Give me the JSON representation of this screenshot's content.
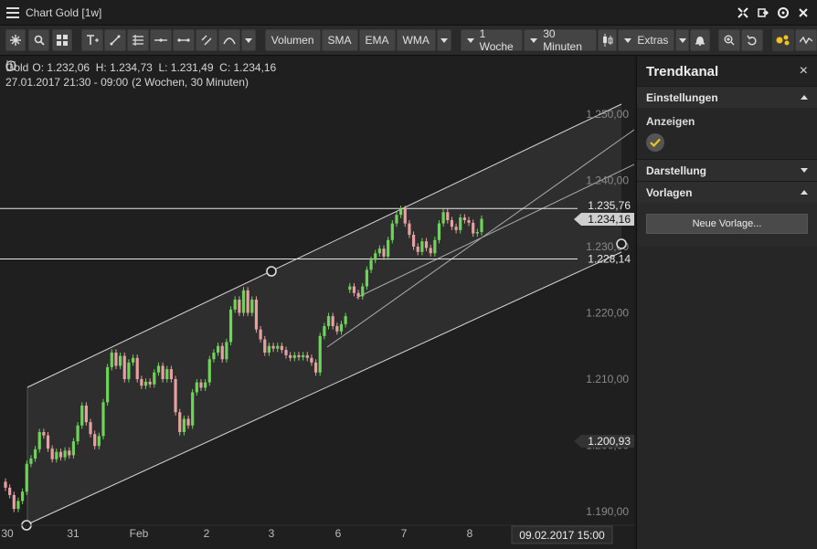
{
  "window": {
    "title": "Chart Gold [1w]"
  },
  "toolbar": {
    "volumen": "Volumen",
    "sma": "SMA",
    "ema": "EMA",
    "wma": "WMA",
    "period": "1 Woche",
    "interval": "30 Minuten",
    "extras": "Extras"
  },
  "legend": {
    "instrument": "Gold",
    "ohlc": "O: 1.232,06  H: 1.234,73  L: 1.231,49  C: 1.234,16",
    "time": "27.01.2017 21:30 - 09:00",
    "range": "(2 Wochen, 30 Minuten)"
  },
  "chart_data": {
    "type": "candlestick",
    "y_ticks": [
      "1.250,00",
      "1.240,00",
      "1.230,00",
      "1.220,00",
      "1.210,00",
      "1.200,00",
      "1.190,00"
    ],
    "x_ticks": [
      "30",
      "31",
      "Feb",
      "2",
      "3",
      "6",
      "7",
      "8"
    ],
    "price_labels": {
      "upper_line": "1.235,76",
      "current": "1.234,16",
      "lower_line": "1.228,14",
      "marker": "1.200,93"
    },
    "crosshair_time": "09.02.2017 15:00",
    "ylim": [
      1188,
      1252
    ],
    "horizontal_lines": [
      1235.76,
      1228.14
    ],
    "candles": [
      [
        1194.5,
        1193.6
      ],
      [
        1193.6,
        1192.5
      ],
      [
        1192.5,
        1190.4
      ],
      [
        1190.4,
        1191.6
      ],
      [
        1191.6,
        1193.0
      ],
      [
        1193.0,
        1197.2
      ],
      [
        1197.2,
        1198.0
      ],
      [
        1198.0,
        1199.4
      ],
      [
        1199.4,
        1202.0
      ],
      [
        1202.0,
        1201.5
      ],
      [
        1201.5,
        1199.5
      ],
      [
        1199.5,
        1197.9
      ],
      [
        1197.9,
        1199.0
      ],
      [
        1199.0,
        1198.2
      ],
      [
        1198.2,
        1199.2
      ],
      [
        1199.2,
        1198.5
      ],
      [
        1198.5,
        1200.6
      ],
      [
        1200.6,
        1203.0
      ],
      [
        1203.0,
        1206.0
      ],
      [
        1206.0,
        1203.5
      ],
      [
        1203.5,
        1201.7
      ],
      [
        1201.7,
        1199.9
      ],
      [
        1199.9,
        1201.4
      ],
      [
        1201.4,
        1206.5
      ],
      [
        1206.5,
        1211.8
      ],
      [
        1211.8,
        1214.0
      ],
      [
        1214.0,
        1212.0
      ],
      [
        1212.0,
        1213.5
      ],
      [
        1213.5,
        1210.0
      ],
      [
        1210.0,
        1212.5
      ],
      [
        1212.5,
        1213.2
      ],
      [
        1213.2,
        1210.0
      ],
      [
        1210.0,
        1209.0
      ],
      [
        1209.0,
        1209.6
      ],
      [
        1209.6,
        1209.2
      ],
      [
        1209.2,
        1211.0
      ],
      [
        1211.0,
        1212.0
      ],
      [
        1212.0,
        1210.0
      ],
      [
        1210.0,
        1211.5
      ],
      [
        1211.5,
        1210.0
      ],
      [
        1210.0,
        1205.0
      ],
      [
        1205.0,
        1202.0
      ],
      [
        1202.0,
        1204.0
      ],
      [
        1204.0,
        1203.0
      ],
      [
        1203.0,
        1208.0
      ],
      [
        1208.0,
        1209.5
      ],
      [
        1209.5,
        1208.7
      ],
      [
        1208.7,
        1209.5
      ],
      [
        1209.5,
        1213.0
      ],
      [
        1213.0,
        1214.0
      ],
      [
        1214.0,
        1215.0
      ],
      [
        1215.0,
        1213.0
      ],
      [
        1213.0,
        1215.6
      ],
      [
        1215.6,
        1220.5
      ],
      [
        1220.5,
        1222.0
      ],
      [
        1222.0,
        1220.0
      ],
      [
        1220.0,
        1223.4
      ],
      [
        1223.4,
        1220.0
      ],
      [
        1220.0,
        1222.0
      ],
      [
        1222.0,
        1217.5
      ],
      [
        1217.5,
        1216.0
      ],
      [
        1216.0,
        1214.0
      ],
      [
        1214.0,
        1215.0
      ],
      [
        1215.0,
        1214.6
      ],
      [
        1214.6,
        1215.0
      ],
      [
        1215.0,
        1214.4
      ],
      [
        1214.4,
        1213.6
      ],
      [
        1213.6,
        1213.2
      ],
      [
        1213.2,
        1213.6
      ],
      [
        1213.6,
        1213.3
      ],
      [
        1213.3,
        1213.6
      ],
      [
        1213.6,
        1213.2
      ],
      [
        1213.2,
        1212.5
      ],
      [
        1212.5,
        1211.0
      ],
      [
        1211.0,
        1216.5
      ],
      [
        1216.5,
        1218.0
      ],
      [
        1218.0,
        1219.5
      ],
      [
        1219.5,
        1218.0
      ],
      [
        1218.0,
        1217.2
      ],
      [
        1217.2,
        1218.3
      ],
      [
        1218.3,
        1219.5
      ],
      [
        1223.5,
        1224.0
      ],
      [
        1224.0,
        1223.0
      ],
      [
        1223.0,
        1222.5
      ],
      [
        1222.5,
        1224.0
      ],
      [
        1224.0,
        1226.5
      ],
      [
        1226.5,
        1228.0
      ],
      [
        1228.0,
        1229.0
      ],
      [
        1229.0,
        1229.7
      ],
      [
        1229.7,
        1228.5
      ],
      [
        1228.5,
        1231.0
      ],
      [
        1231.0,
        1233.5
      ],
      [
        1233.5,
        1234.8
      ],
      [
        1234.8,
        1235.7
      ],
      [
        1235.7,
        1233.5
      ],
      [
        1233.5,
        1231.8
      ],
      [
        1231.8,
        1230.0
      ],
      [
        1230.0,
        1229.2
      ],
      [
        1229.2,
        1230.8
      ],
      [
        1230.8,
        1229.8
      ],
      [
        1229.8,
        1229.0
      ],
      [
        1229.0,
        1231.0
      ],
      [
        1231.0,
        1233.5
      ],
      [
        1233.5,
        1235.2
      ],
      [
        1235.2,
        1234.0
      ],
      [
        1234.0,
        1233.0
      ],
      [
        1233.0,
        1232.5
      ],
      [
        1232.5,
        1234.4
      ],
      [
        1234.4,
        1234.0
      ],
      [
        1234.0,
        1233.6
      ],
      [
        1233.6,
        1232.0
      ],
      [
        1232.0,
        1232.2
      ],
      [
        1232.2,
        1234.2
      ]
    ]
  },
  "panel": {
    "title": "Trendkanal",
    "close": "×",
    "settings": "Einstellungen",
    "show_label": "Anzeigen",
    "display": "Darstellung",
    "templates": "Vorlagen",
    "new_template": "Neue Vorlage..."
  },
  "colors": {
    "up": "#6fd25a",
    "down": "#e6a0a0",
    "line": "#cfcfcf",
    "accent": "#f0c419"
  }
}
